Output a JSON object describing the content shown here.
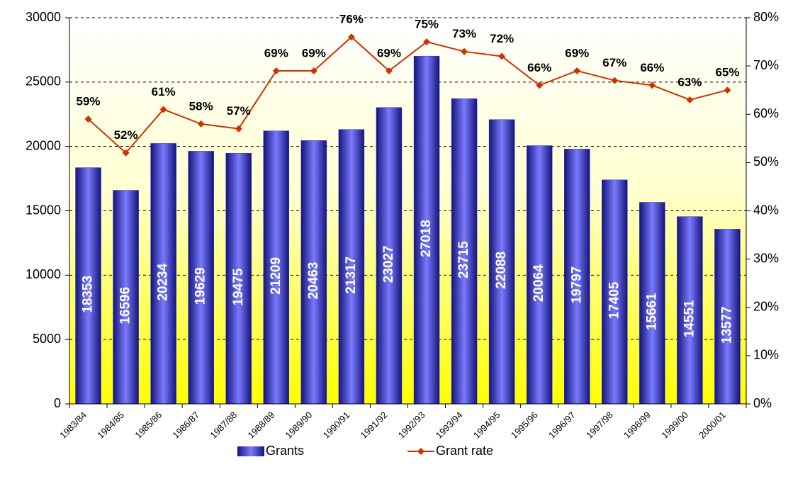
{
  "chart_data": {
    "type": "bar",
    "categories": [
      "1983/84",
      "1984/85",
      "1985/86",
      "1986/87",
      "1987/88",
      "1988/89",
      "1989/90",
      "1990/91",
      "1991/92",
      "1992/93",
      "1993/94",
      "1994/95",
      "1995/96",
      "1996/97",
      "1997/98",
      "1998/99",
      "1999/00",
      "2000/01"
    ],
    "series": [
      {
        "name": "Grants",
        "type": "bar",
        "color": "#3333cc",
        "values": [
          18353,
          16596,
          20234,
          19629,
          19475,
          21209,
          20463,
          21317,
          23027,
          27018,
          23715,
          22088,
          20064,
          19797,
          17405,
          15661,
          14551,
          13577
        ]
      },
      {
        "name": "Grant rate",
        "type": "line",
        "axis": "y2",
        "color": "#cc3300",
        "values": [
          59,
          52,
          61,
          58,
          57,
          69,
          69,
          76,
          69,
          75,
          73,
          72,
          66,
          69,
          67,
          66,
          63,
          65
        ],
        "value_labels": [
          "59%",
          "52%",
          "61%",
          "58%",
          "57%",
          "69%",
          "69%",
          "76%",
          "69%",
          "75%",
          "73%",
          "72%",
          "66%",
          "69%",
          "67%",
          "66%",
          "63%",
          "65%"
        ]
      }
    ],
    "ylim": [
      0,
      30000
    ],
    "yticks": [
      0,
      5000,
      10000,
      15000,
      20000,
      25000,
      30000
    ],
    "y2lim": [
      0,
      80
    ],
    "y2ticks": [
      {
        "value": 0,
        "label": "0%"
      },
      {
        "value": 10,
        "label": "10%"
      },
      {
        "value": 20,
        "label": "20%"
      },
      {
        "value": 30,
        "label": "30%"
      },
      {
        "value": 40,
        "label": "40%"
      },
      {
        "value": 50,
        "label": "50%"
      },
      {
        "value": 60,
        "label": "60%"
      },
      {
        "value": 70,
        "label": "70%"
      },
      {
        "value": 80,
        "label": "80%"
      }
    ],
    "grid": true,
    "legend": "bottom"
  }
}
